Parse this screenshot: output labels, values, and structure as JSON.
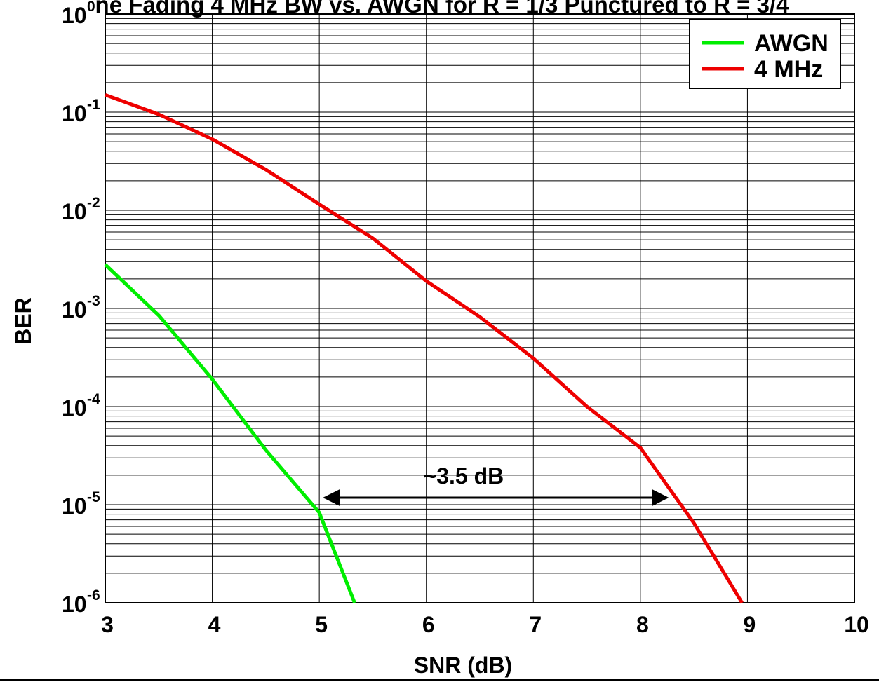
{
  "chart_data": {
    "type": "line",
    "title": "ne Fading 4 MHz BW vs. AWGN for R = 1/3 Punctured to R = 3/4",
    "xlabel": "SNR (dB)",
    "ylabel": "BER",
    "xlim": [
      3,
      10
    ],
    "ylim": [
      1e-06,
      1
    ],
    "yscale": "log",
    "grid": "on",
    "x_ticks": [
      "3",
      "4",
      "5",
      "6",
      "7",
      "8",
      "9",
      "10"
    ],
    "y_ticks": [
      {
        "base": "10",
        "exp": "0",
        "value": 1
      },
      {
        "base": "10",
        "exp": "-1",
        "value": 0.1
      },
      {
        "base": "10",
        "exp": "-2",
        "value": 0.01
      },
      {
        "base": "10",
        "exp": "-3",
        "value": 0.001
      },
      {
        "base": "10",
        "exp": "-4",
        "value": 0.0001
      },
      {
        "base": "10",
        "exp": "-5",
        "value": 1e-05
      },
      {
        "base": "10",
        "exp": "-6",
        "value": 1e-06
      }
    ],
    "legend_position": "top-right",
    "series": [
      {
        "name": "AWGN",
        "color": "#00ee00",
        "points": [
          [
            3,
            0.0028
          ],
          [
            3.5,
            0.00085
          ],
          [
            4,
            0.00019
          ],
          [
            4.5,
            3.6e-05
          ],
          [
            5,
            8.3e-06
          ],
          [
            5.33,
            1e-06
          ]
        ]
      },
      {
        "name": "4 MHz",
        "color": "#ee0000",
        "points": [
          [
            3,
            0.15
          ],
          [
            3.5,
            0.095
          ],
          [
            4,
            0.053
          ],
          [
            4.5,
            0.026
          ],
          [
            5,
            0.0115
          ],
          [
            5.5,
            0.0052
          ],
          [
            6,
            0.0019
          ],
          [
            6.5,
            0.00082
          ],
          [
            7,
            0.00031
          ],
          [
            7.5,
            0.0001
          ],
          [
            8,
            3.8e-05
          ],
          [
            8.5,
            6.5e-06
          ],
          [
            8.95,
            1e-06
          ]
        ]
      }
    ],
    "annotation": {
      "text": "~3.5 dB",
      "arrow_from": [
        5.05,
        1e-05
      ],
      "arrow_to": [
        8.25,
        1e-05
      ],
      "color": "#000000"
    }
  }
}
